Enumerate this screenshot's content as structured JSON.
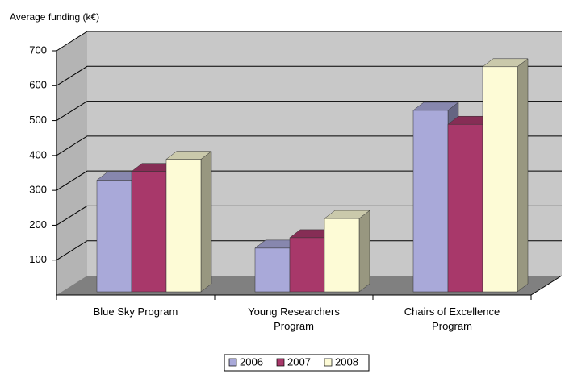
{
  "chart_data": {
    "type": "bar3d",
    "title": "Average funding (k€)",
    "categories": [
      "Blue Sky Program",
      "Young Researchers Program",
      "Chairs of Excellence Program"
    ],
    "series": [
      {
        "name": "2006",
        "color": "#a9a9d9",
        "values": [
          320,
          125,
          520
        ]
      },
      {
        "name": "2007",
        "color": "#a8386a",
        "values": [
          345,
          155,
          480
        ]
      },
      {
        "name": "2008",
        "color": "#fdfbd6",
        "values": [
          380,
          210,
          645
        ]
      }
    ],
    "ylim": [
      0,
      700
    ],
    "yticks": [
      100,
      200,
      300,
      400,
      500,
      600,
      700
    ],
    "grid": true,
    "legend": "bottom"
  }
}
